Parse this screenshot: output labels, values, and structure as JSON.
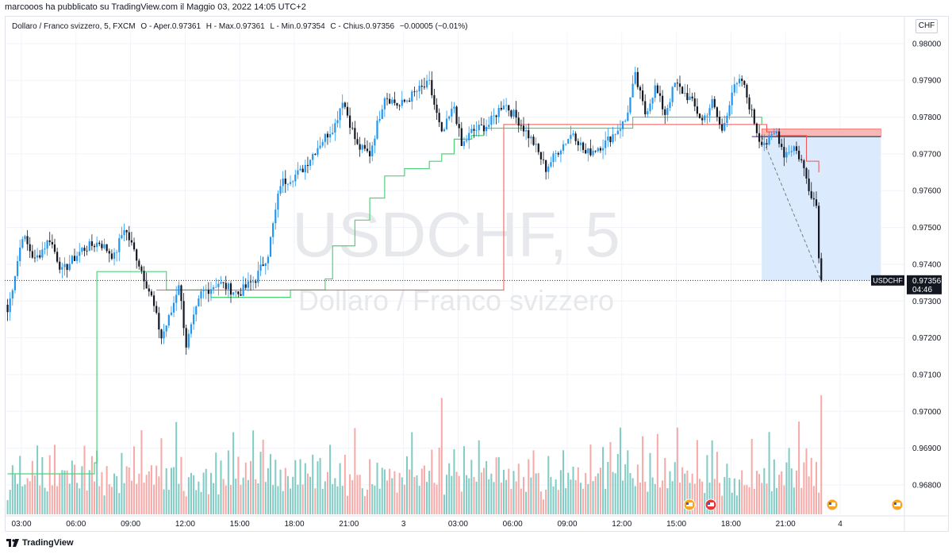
{
  "caption": "marcooos ha pubblicato su TradingView.com il Maggio 03, 2022 14:05 UTC+2",
  "legend": {
    "symbol": "Dollaro / Franco svizzero, 5, FXCM",
    "open": "O - Aper.0.97361",
    "high": "H - Max.0.97361",
    "low": "L - Min.0.97354",
    "close": "C - Chius.0.97356",
    "change": "−0.00005 (−0.01%)"
  },
  "currency": "CHF",
  "watermark": {
    "symbol": "USDCHF, 5",
    "name": "Dollaro / Franco svizzero"
  },
  "price_tag": {
    "symbol": "USDCHF",
    "price": "0.97356",
    "countdown": "04:46"
  },
  "footer": "TradingView",
  "colors": {
    "up": "#2196f3",
    "down": "#131722",
    "vol_up": "#80cbc4",
    "vol_down": "#f7a9a7",
    "green_line": "#4cd47a",
    "red_line": "#f05350",
    "purple_line": "#7b3fa0",
    "target_zone": "#dbeafc",
    "stop_zone": "#f7b9b8",
    "grid": "#f0f3fa"
  },
  "chart_data": {
    "type": "candlestick",
    "symbol": "USDCHF",
    "timeframe": "5",
    "ylim": [
      0.9672,
      0.9803
    ],
    "y_ticks": [
      "0.98000",
      "0.97900",
      "0.97800",
      "0.97700",
      "0.97600",
      "0.97500",
      "0.97400",
      "0.97300",
      "0.97200",
      "0.97100",
      "0.97000",
      "0.96900",
      "0.96800"
    ],
    "x_ticks": [
      "03:00",
      "06:00",
      "09:00",
      "12:00",
      "15:00",
      "18:00",
      "21:00",
      "3",
      "03:00",
      "06:00",
      "09:00",
      "12:00",
      "15:00",
      "18:00",
      "21:00",
      "4"
    ],
    "last_price": 0.97356,
    "path": [
      [
        0,
        0.9727
      ],
      [
        6,
        0.9748
      ],
      [
        11,
        0.9741
      ],
      [
        17,
        0.9747
      ],
      [
        22,
        0.9738
      ],
      [
        30,
        0.9744
      ],
      [
        37,
        0.9746
      ],
      [
        43,
        0.9742
      ],
      [
        47,
        0.975
      ],
      [
        52,
        0.9742
      ],
      [
        58,
        0.9731
      ],
      [
        62,
        0.972
      ],
      [
        66,
        0.9727
      ],
      [
        69,
        0.9735
      ],
      [
        72,
        0.9718
      ],
      [
        78,
        0.9732
      ],
      [
        85,
        0.9735
      ],
      [
        93,
        0.9732
      ],
      [
        100,
        0.9736
      ],
      [
        105,
        0.9743
      ],
      [
        110,
        0.9762
      ],
      [
        118,
        0.9765
      ],
      [
        126,
        0.9773
      ],
      [
        132,
        0.9778
      ],
      [
        135,
        0.9785
      ],
      [
        141,
        0.9772
      ],
      [
        146,
        0.977
      ],
      [
        152,
        0.9786
      ],
      [
        158,
        0.9783
      ],
      [
        165,
        0.9787
      ],
      [
        170,
        0.9789
      ],
      [
        175,
        0.9775
      ],
      [
        180,
        0.9783
      ],
      [
        183,
        0.9772
      ],
      [
        187,
        0.9776
      ],
      [
        194,
        0.9778
      ],
      [
        200,
        0.9784
      ],
      [
        206,
        0.9779
      ],
      [
        212,
        0.9773
      ],
      [
        217,
        0.9766
      ],
      [
        222,
        0.9771
      ],
      [
        228,
        0.9776
      ],
      [
        233,
        0.977
      ],
      [
        241,
        0.9773
      ],
      [
        249,
        0.9779
      ],
      [
        253,
        0.9791
      ],
      [
        257,
        0.9781
      ],
      [
        261,
        0.9788
      ],
      [
        265,
        0.9781
      ],
      [
        269,
        0.9789
      ],
      [
        275,
        0.9785
      ],
      [
        280,
        0.9779
      ],
      [
        284,
        0.9784
      ],
      [
        288,
        0.9776
      ],
      [
        292,
        0.9787
      ],
      [
        296,
        0.979
      ],
      [
        300,
        0.9781
      ],
      [
        303,
        0.9774
      ],
      [
        306,
        0.9773
      ],
      [
        310,
        0.9776
      ],
      [
        313,
        0.977
      ],
      [
        317,
        0.9772
      ],
      [
        320,
        0.9768
      ],
      [
        323,
        0.9761
      ],
      [
        326,
        0.9756
      ],
      [
        327,
        0.9743
      ],
      [
        328,
        0.9736
      ]
    ],
    "volume": {
      "values": [
        0.2,
        0.35,
        0.6,
        0.45,
        0.3,
        0.5,
        0.25,
        0.4,
        0.55,
        0.3,
        0.45,
        0.35,
        0.65,
        0.3,
        0.5,
        0.4,
        0.28,
        0.6,
        0.42,
        0.7,
        0.33,
        0.5,
        0.38,
        0.45,
        0.6,
        0.3,
        0.52,
        0.75,
        0.4,
        0.36,
        0.58,
        1.0,
        0.3,
        0.48,
        0.62,
        0.35,
        0.55,
        0.4,
        0.5,
        0.27,
        0.66,
        0.41,
        0.33,
        0.57,
        0.46,
        0.3,
        0.7,
        0.38,
        0.44,
        0.52,
        0.36,
        0.6,
        0.3,
        0.48,
        0.8,
        0.35,
        0.5,
        0.4,
        0.62,
        0.3,
        0.55,
        0.42,
        0.68,
        0.35,
        0.5,
        0.28,
        0.6,
        0.44,
        0.9,
        0.4,
        0.55,
        0.33
      ]
    },
    "overlays": {
      "trailing_stop": [
        [
          0,
          0.9683
        ],
        [
          35,
          0.9686
        ],
        [
          36,
          0.9738
        ],
        [
          60,
          0.9738
        ],
        [
          64,
          0.9733
        ],
        [
          80,
          0.9733
        ],
        [
          82,
          0.9731
        ],
        [
          112,
          0.9731
        ],
        [
          114,
          0.9733
        ],
        [
          128,
          0.9736
        ],
        [
          131,
          0.9745
        ],
        [
          140,
          0.9752
        ],
        [
          146,
          0.9758
        ],
        [
          152,
          0.9764
        ],
        [
          160,
          0.9766
        ],
        [
          170,
          0.9768
        ],
        [
          175,
          0.977
        ],
        [
          180,
          0.9774
        ],
        [
          187,
          0.9775
        ],
        [
          192,
          0.9777
        ],
        [
          196,
          0.9777
        ],
        [
          250,
          0.9777
        ],
        [
          252,
          0.978
        ],
        [
          262,
          0.978
        ],
        [
          300,
          0.978
        ],
        [
          304,
          0.9778
        ]
      ],
      "resistance_line": [
        [
          60,
          0.9733
        ],
        [
          80,
          0.9733
        ],
        [
          200,
          0.9778
        ],
        [
          250,
          0.9778
        ],
        [
          300,
          0.9778
        ],
        [
          306,
          0.9776
        ],
        [
          310,
          0.9775
        ],
        [
          316,
          0.9775
        ],
        [
          322,
          0.9768
        ],
        [
          327,
          0.9765
        ]
      ]
    },
    "short_position": {
      "entry": 0.97747,
      "stop": 0.97768,
      "target": 0.97355,
      "start_index": 304,
      "end_index": 352
    }
  }
}
